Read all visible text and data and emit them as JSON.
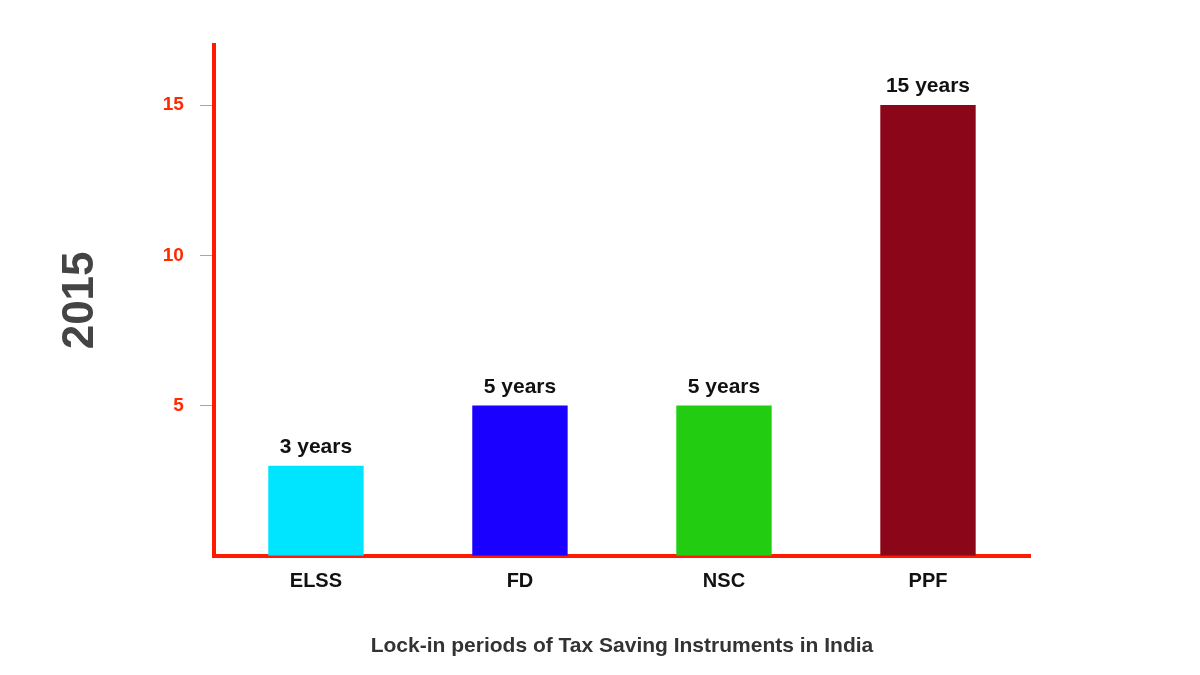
{
  "chart_data": {
    "type": "bar",
    "xlabel": "Lock-in periods of Tax Saving Instruments in India",
    "ylabel": "2015",
    "categories": [
      "ELSS",
      "FD",
      "NSC",
      "PPF"
    ],
    "values": [
      3,
      5,
      5,
      15
    ],
    "colors": [
      "#00e5ff",
      "#1a00ff",
      "#22cc11",
      "#8b0618"
    ],
    "value_labels": [
      "3 years",
      "5 years",
      "5 years",
      "15 years"
    ],
    "ylim": [
      0,
      17
    ],
    "yticks": [
      5,
      10,
      15
    ],
    "grid": false,
    "legend": false
  }
}
